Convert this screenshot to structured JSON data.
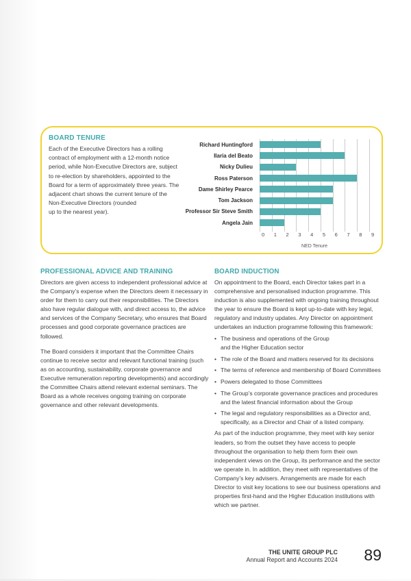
{
  "board_tenure": {
    "heading": "BOARD TENURE",
    "body": "Each of the Executive Directors has a rolling contract of employment with a 12-month notice period, while Non-Executive Directors are, subject to re-election by shareholders, appointed to the Board for a term of approximately three years. The adjacent chart shows the current tenure of the\nNon-Executive Directors (rounded\nup to the nearest year)."
  },
  "chart_data": {
    "type": "bar",
    "orientation": "horizontal",
    "categories": [
      "Richard Huntingford",
      "Ilaria del Beato",
      "Nicky Dulieu",
      "Ross Paterson",
      "Dame Shirley Pearce",
      "Tom Jackson",
      "Professor Sir Steve Smith",
      "Angela Jain"
    ],
    "values": [
      5,
      7,
      3,
      8,
      6,
      6,
      5,
      2
    ],
    "title": "",
    "xlabel": "NED Tenure",
    "ylabel": "",
    "xlim": [
      0,
      9
    ],
    "ticks": [
      0,
      1,
      2,
      3,
      4,
      5,
      6,
      7,
      8,
      9
    ],
    "grid": true,
    "legend": false,
    "bar_color": "#55aeb0",
    "gridline_color": "#cbcbcb"
  },
  "advice": {
    "heading": "PROFESSIONAL ADVICE AND TRAINING",
    "para1": "Directors are given access to independent professional advice at the Company’s expense when the Directors deem it necessary in order for them to carry out their responsibilities. The Directors also have regular dialogue with, and direct access to, the advice and services of the Company Secretary, who ensures that Board processes and good corporate governance practices are followed.",
    "para2": "The Board considers it important that the Committee Chairs continue to receive sector and relevant functional training (such as on accounting, sustainability, corporate governance and Executive remuneration reporting developments) and accordingly the Committee Chairs attend relevant external seminars. The Board as a whole receives ongoing training on corporate governance and other relevant developments."
  },
  "induction": {
    "heading": "BOARD INDUCTION",
    "para1": "On appointment to the Board, each Director takes part in a comprehensive and personalised induction programme. This induction is also supplemented with ongoing training throughout the year to ensure the Board is kept up-to-date with key legal, regulatory and industry updates. Any Director on appointment undertakes an induction programme following this framework:",
    "bullet_marker": "•",
    "bullets": [
      "The business and operations of the Group\nand the Higher Education sector",
      "The role of the Board and matters reserved for its decisions",
      "The terms of reference and membership of Board Committees",
      "Powers delegated to those Committees",
      "The Group’s corporate governance practices and procedures\nand the latest financial information about the Group",
      "The legal and regulatory responsibilities as a Director and,\nspecifically, as a Director and Chair of a listed company."
    ],
    "para2": "As part of the induction programme, they meet with key senior leaders, so from the outset they have access to people throughout the organisation to help them form their own independent views on the Group, its performance and the sector we operate in. In addition, they meet with representatives of the Company’s key advisers. Arrangements are made for each Director to visit key locations to see our business operations and properties first-hand and the Higher Education institutions with which we partner."
  },
  "footer": {
    "company": "THE UNITE GROUP PLC",
    "report": "Annual Report and Accounts 2024",
    "page_number": "89"
  },
  "colors": {
    "accent_teal": "#3fa7ac",
    "bar_teal": "#55aeb0",
    "box_border_yellow": "#f0d32e",
    "body_text": "#3e3e3e"
  }
}
